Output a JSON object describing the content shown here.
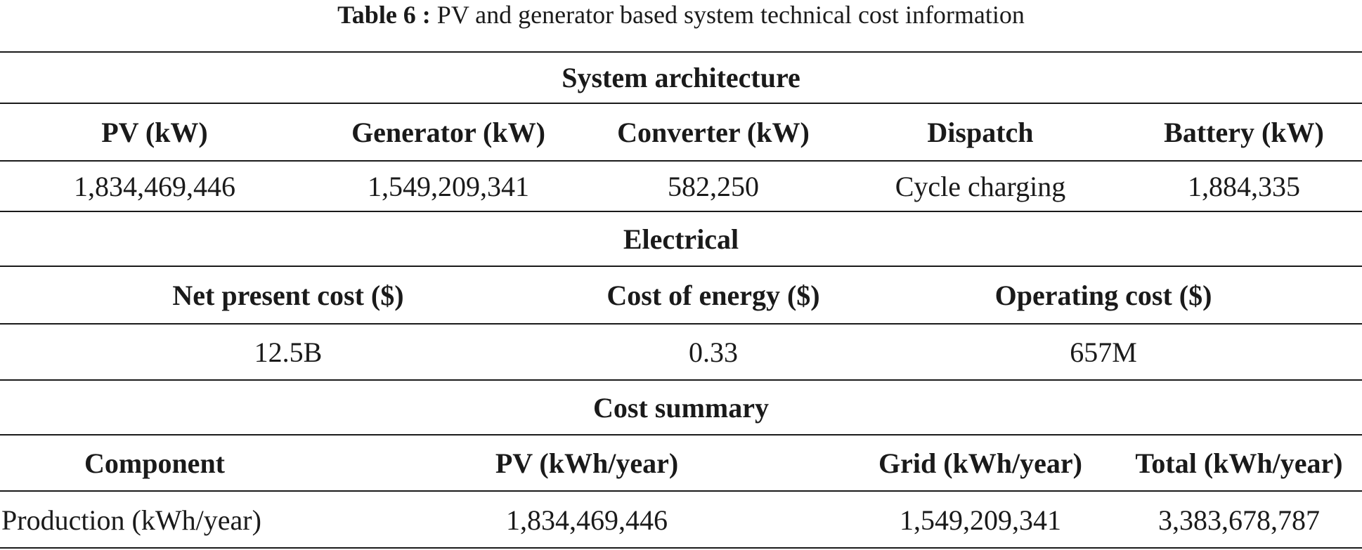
{
  "caption": {
    "label": "Table 6 :",
    "text": "PV and generator based system technical cost information"
  },
  "sections": {
    "architecture": {
      "title": "System architecture",
      "headers": [
        "PV (kW)",
        "Generator (kW)",
        "Converter (kW)",
        "Dispatch",
        "Battery (kW)"
      ],
      "values": [
        "1,834,469,446",
        "1,549,209,341",
        "582,250",
        "Cycle charging",
        "1,884,335"
      ]
    },
    "electrical": {
      "title": "Electrical",
      "headers": [
        "Net present cost ($)",
        "Cost of energy ($)",
        "Operating cost ($)"
      ],
      "values": [
        "12.5B",
        "0.33",
        "657M"
      ]
    },
    "cost_summary": {
      "title": "Cost summary",
      "headers": [
        "Component",
        "PV (kWh/year)",
        "Grid (kWh/year)",
        "Total (kWh/year)"
      ],
      "values": [
        "Production (kWh/year)",
        "1,834,469,446",
        "1,549,209,341",
        "3,383,678,787"
      ]
    }
  }
}
